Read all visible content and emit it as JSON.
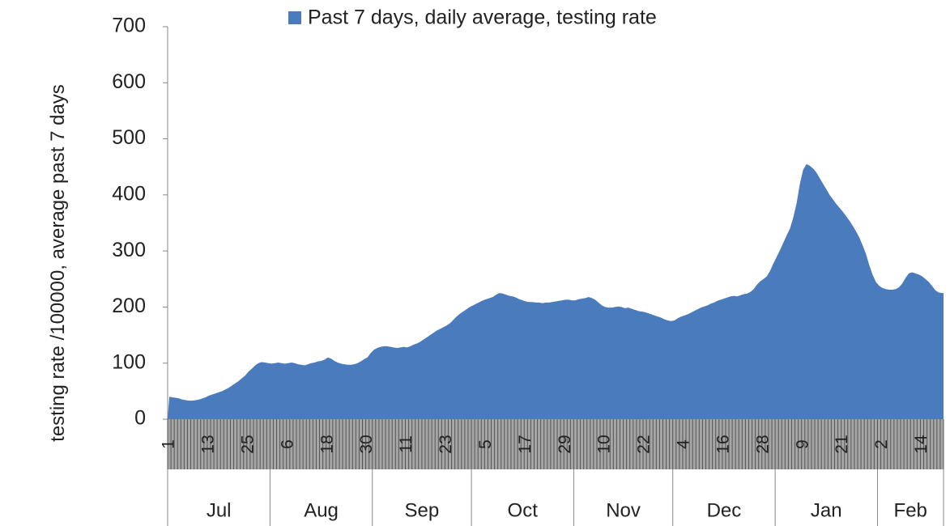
{
  "chart_data": {
    "type": "area",
    "y_label": "testing rate /100000, average past 7 days",
    "series": [
      {
        "name": "Past 7 days, daily average, testing rate",
        "color": "#4a7bbd",
        "values": [
          40,
          39,
          38,
          37,
          35,
          34,
          33,
          33,
          34,
          35,
          37,
          39,
          42,
          44,
          46,
          48,
          50,
          53,
          56,
          60,
          64,
          68,
          73,
          78,
          85,
          90,
          96,
          100,
          102,
          101,
          100,
          99,
          100,
          101,
          100,
          99,
          100,
          101,
          100,
          98,
          97,
          96,
          98,
          100,
          101,
          103,
          104,
          106,
          110,
          108,
          104,
          101,
          99,
          98,
          97,
          97,
          98,
          100,
          103,
          107,
          110,
          118,
          124,
          127,
          129,
          130,
          130,
          129,
          128,
          127,
          128,
          129,
          128,
          130,
          133,
          135,
          138,
          142,
          146,
          150,
          154,
          158,
          161,
          164,
          167,
          171,
          177,
          183,
          188,
          192,
          196,
          200,
          203,
          206,
          209,
          212,
          214,
          216,
          218,
          222,
          225,
          224,
          222,
          220,
          219,
          217,
          214,
          212,
          210,
          209,
          209,
          208,
          208,
          207,
          208,
          208,
          209,
          210,
          211,
          212,
          213,
          213,
          212,
          212,
          214,
          215,
          216,
          218,
          216,
          213,
          208,
          203,
          200,
          199,
          199,
          200,
          201,
          200,
          198,
          199,
          197,
          195,
          193,
          192,
          191,
          189,
          187,
          185,
          183,
          181,
          178,
          176,
          175,
          176,
          180,
          183,
          185,
          187,
          190,
          193,
          196,
          199,
          201,
          203,
          206,
          208,
          211,
          213,
          215,
          217,
          219,
          220,
          219,
          221,
          223,
          224,
          227,
          232,
          240,
          246,
          250,
          255,
          265,
          278,
          290,
          302,
          315,
          328,
          340,
          360,
          385,
          420,
          445,
          455,
          452,
          447,
          440,
          430,
          420,
          410,
          400,
          392,
          384,
          377,
          370,
          362,
          354,
          345,
          335,
          324,
          310,
          295,
          275,
          258,
          245,
          238,
          234,
          232,
          231,
          231,
          232,
          235,
          242,
          252,
          260,
          262,
          260,
          258,
          255,
          250,
          245,
          238,
          230,
          226,
          225
        ]
      }
    ],
    "categories": [
      "1",
      null,
      null,
      null,
      null,
      null,
      null,
      null,
      null,
      null,
      null,
      null,
      "13",
      null,
      null,
      null,
      null,
      null,
      null,
      null,
      null,
      null,
      null,
      null,
      "25",
      null,
      null,
      null,
      null,
      null,
      null,
      null,
      null,
      null,
      null,
      null,
      "6",
      null,
      null,
      null,
      null,
      null,
      null,
      null,
      null,
      null,
      null,
      null,
      "18",
      null,
      null,
      null,
      null,
      null,
      null,
      null,
      null,
      null,
      null,
      null,
      "30",
      null,
      null,
      null,
      null,
      null,
      null,
      null,
      null,
      null,
      null,
      null,
      "11",
      null,
      null,
      null,
      null,
      null,
      null,
      null,
      null,
      null,
      null,
      null,
      "23",
      null,
      null,
      null,
      null,
      null,
      null,
      null,
      null,
      null,
      null,
      null,
      "5",
      null,
      null,
      null,
      null,
      null,
      null,
      null,
      null,
      null,
      null,
      null,
      "17",
      null,
      null,
      null,
      null,
      null,
      null,
      null,
      null,
      null,
      null,
      null,
      "29",
      null,
      null,
      null,
      null,
      null,
      null,
      null,
      null,
      null,
      null,
      null,
      "10",
      null,
      null,
      null,
      null,
      null,
      null,
      null,
      null,
      null,
      null,
      null,
      "22",
      null,
      null,
      null,
      null,
      null,
      null,
      null,
      null,
      null,
      null,
      null,
      "4",
      null,
      null,
      null,
      null,
      null,
      null,
      null,
      null,
      null,
      null,
      null,
      "16",
      null,
      null,
      null,
      null,
      null,
      null,
      null,
      null,
      null,
      null,
      null,
      "28",
      null,
      null,
      null,
      null,
      null,
      null,
      null,
      null,
      null,
      null,
      null,
      "9",
      null,
      null,
      null,
      null,
      null,
      null,
      null,
      null,
      null,
      null,
      null,
      "21",
      null,
      null,
      null,
      null,
      null,
      null,
      null,
      null,
      null,
      null,
      null,
      "2",
      null,
      null,
      null,
      null,
      null,
      null,
      null,
      null,
      null,
      null,
      null,
      "14",
      null,
      null,
      null,
      null,
      null,
      null
    ],
    "months": [
      "Jul",
      "Aug",
      "Sep",
      "Oct",
      "Nov",
      "Dec",
      "Jan",
      "Feb"
    ],
    "ylim": [
      0,
      700
    ],
    "yticks": [
      0,
      100,
      200,
      300,
      400,
      500,
      600,
      700
    ],
    "grid": false,
    "legend": "top"
  }
}
